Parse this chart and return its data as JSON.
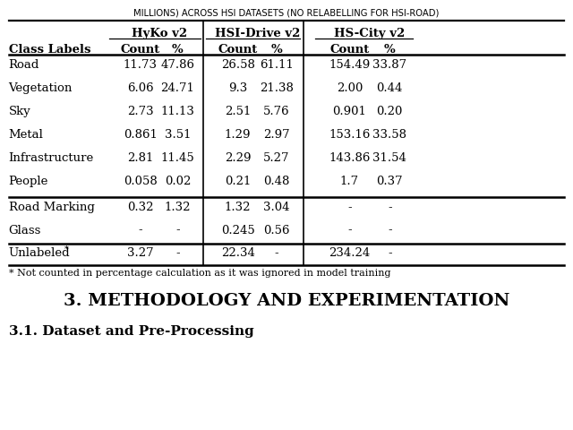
{
  "title_top": "MILLIONS) ACROSS HSI DATASETS (NO RELABELLING FOR HSI-ROAD)",
  "section_title": "3. METHODOLOGY AND EXPERIMENTATION",
  "subsection": "3.1. Dataset and Pre-Processing",
  "footnote": "* Not counted in percentage calculation as it was ignored in model training",
  "col_groups": [
    "HyKo v2",
    "HSI-Drive v2",
    "HS-City v2"
  ],
  "rows": [
    [
      "Road",
      "11.73",
      "47.86",
      "26.58",
      "61.11",
      "154.49",
      "33.87"
    ],
    [
      "Vegetation",
      "6.06",
      "24.71",
      "9.3",
      "21.38",
      "2.00",
      "0.44"
    ],
    [
      "Sky",
      "2.73",
      "11.13",
      "2.51",
      "5.76",
      "0.901",
      "0.20"
    ],
    [
      "Metal",
      "0.861",
      "3.51",
      "1.29",
      "2.97",
      "153.16",
      "33.58"
    ],
    [
      "Infrastructure",
      "2.81",
      "11.45",
      "2.29",
      "5.27",
      "143.86",
      "31.54"
    ],
    [
      "People",
      "0.058",
      "0.02",
      "0.21",
      "0.48",
      "1.7",
      "0.37"
    ]
  ],
  "rows2": [
    [
      "Road Marking",
      "0.32",
      "1.32",
      "1.32",
      "3.04",
      "-",
      "-"
    ],
    [
      "Glass",
      "-",
      "-",
      "0.245",
      "0.56",
      "-",
      "-"
    ]
  ],
  "rows3": [
    [
      "Unlabeled",
      "3.27",
      "-",
      "22.34",
      "-",
      "234.24",
      "-"
    ]
  ],
  "background_color": "#ffffff",
  "fontsize_title": 7.2,
  "fontsize_table": 9.5,
  "fontsize_section": 14,
  "fontsize_subsection": 11,
  "fontsize_footnote": 8.0
}
